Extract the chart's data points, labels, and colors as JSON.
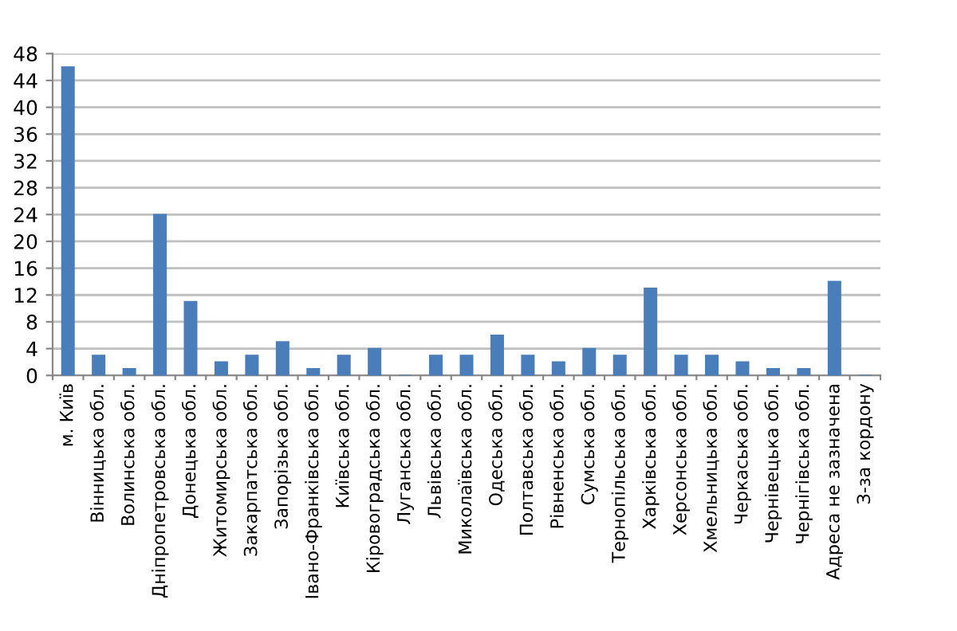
{
  "chart_data": {
    "type": "bar",
    "categories": [
      "м. Київ",
      "Вінницька обл.",
      "Волинська обл.",
      "Дніпропетровська обл.",
      "Донецька обл.",
      "Житомирська обл.",
      "Закарпатська обл.",
      "Запорізька обл.",
      "Івано-Франківська обл.",
      "Київська обл.",
      "Кіровоградська обл.",
      "Луганська обл.",
      "Львівська обл.",
      "Миколаївська обл.",
      "Одеська обл.",
      "Полтавська обл.",
      "Рівненська обл.",
      "Сумська обл.",
      "Тернопільська обл.",
      "Харківська обл.",
      "Херсонська обл.",
      "Хмельницька обл.",
      "Черкаська обл.",
      "Чернівецька обл.",
      "Чернігівська обл.",
      "Адреса не зазначена",
      "З-за кордону"
    ],
    "values": [
      46,
      3,
      1,
      24,
      11,
      2,
      3,
      5,
      1,
      3,
      4,
      0,
      3,
      3,
      6,
      3,
      2,
      4,
      3,
      13,
      3,
      3,
      2,
      1,
      1,
      14,
      0
    ],
    "color": "#4a7ebb",
    "ylim": [
      0,
      48
    ],
    "yticks": [
      0,
      4,
      8,
      12,
      16,
      20,
      24,
      28,
      32,
      36,
      40,
      44,
      48
    ],
    "grid": "y",
    "legend": false
  }
}
